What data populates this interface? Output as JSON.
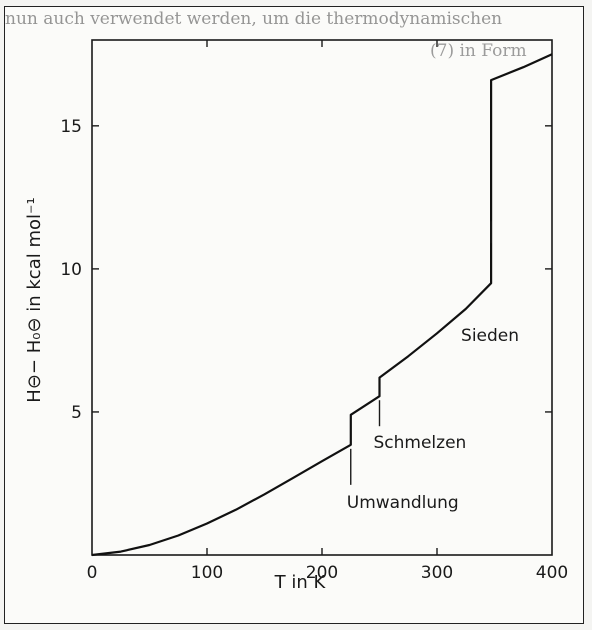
{
  "header_fragments": {
    "line1": "nun auch verwendet werden, um die thermodynamischen",
    "line2": "(7) in Form"
  },
  "chart_data": {
    "type": "line",
    "xlabel": "T in K",
    "ylabel": "H⊖− H₀⊖ in kcal  mol⁻¹",
    "xlim": [
      0,
      400
    ],
    "ylim": [
      0,
      18
    ],
    "x_ticks": [
      0,
      100,
      200,
      300,
      400
    ],
    "y_ticks": [
      5,
      10,
      15
    ],
    "grid": false,
    "series": [
      {
        "points": [
          [
            0,
            0
          ],
          [
            25,
            0.12
          ],
          [
            50,
            0.35
          ],
          [
            75,
            0.68
          ],
          [
            100,
            1.1
          ],
          [
            125,
            1.58
          ],
          [
            150,
            2.12
          ],
          [
            175,
            2.7
          ],
          [
            200,
            3.28
          ],
          [
            225,
            3.85
          ],
          [
            225,
            4.9
          ],
          [
            250,
            5.55
          ],
          [
            250,
            6.2
          ],
          [
            275,
            6.95
          ],
          [
            300,
            7.75
          ],
          [
            325,
            8.6
          ],
          [
            347,
            9.5
          ],
          [
            347,
            16.6
          ],
          [
            375,
            17.05
          ],
          [
            400,
            17.5
          ]
        ]
      }
    ],
    "annotations": [
      {
        "text": "Umwandlung",
        "x": 225,
        "y": 3.85
      },
      {
        "text": "Schmelzen",
        "x": 250,
        "y": 5.55
      },
      {
        "text": "Sieden",
        "x": 347,
        "y": 9.5
      }
    ]
  }
}
